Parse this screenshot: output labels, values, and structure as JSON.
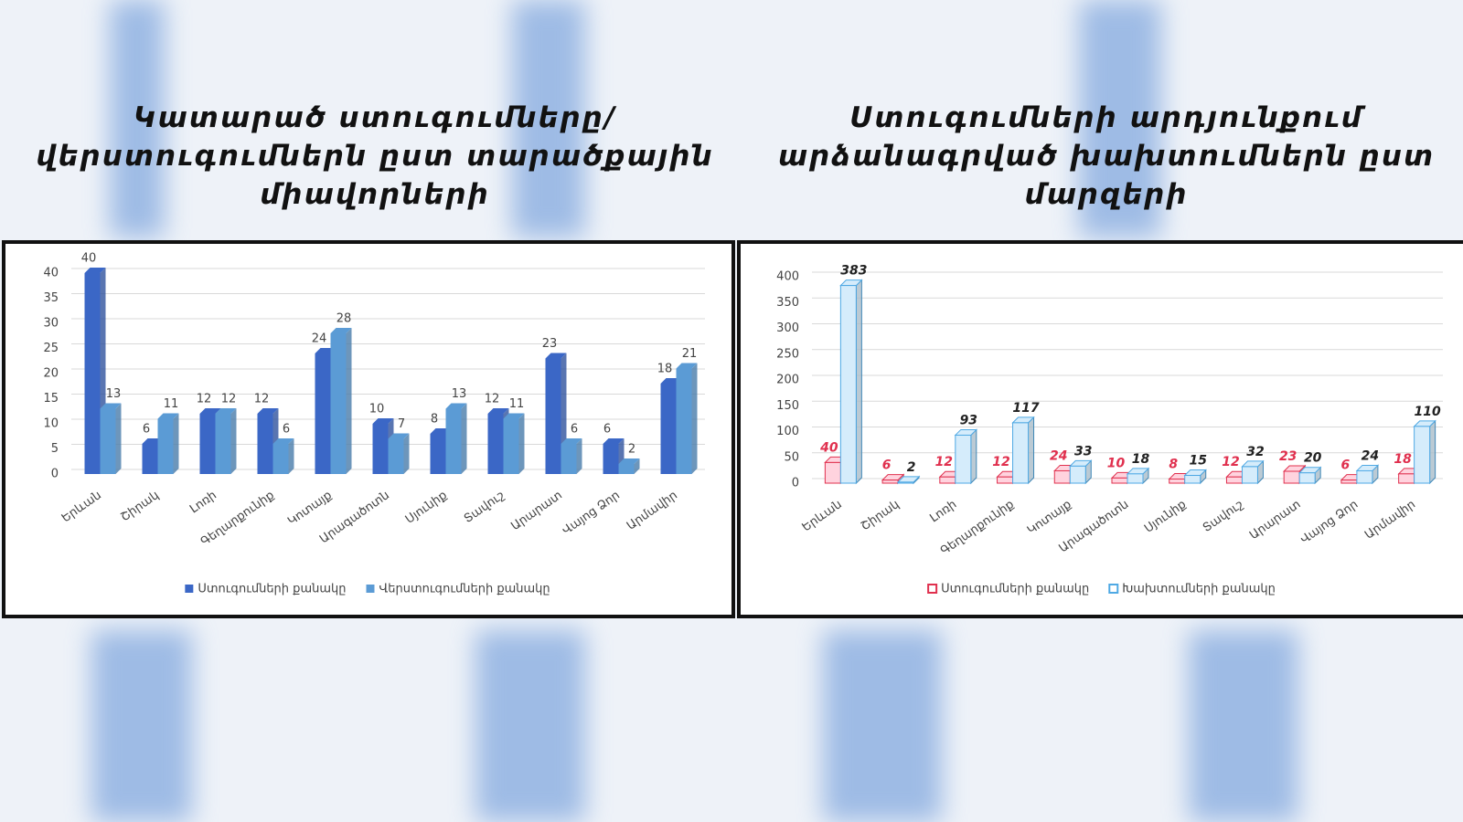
{
  "chart_data": [
    {
      "type": "bar",
      "title": "Կատարած ստուգումները/վերստուգումներն ըստ տարածքային միավորների",
      "categories": [
        "Երևան",
        "Շիրակ",
        "Լոռի",
        "Գեղարքունիք",
        "Կոտայք",
        "Արագածոտն",
        "Սյունիք",
        "Տավուշ",
        "Արարատ",
        "Վայոց Ձոր",
        "Արմավիր"
      ],
      "series": [
        {
          "name": "Ստուգումների քանակը",
          "color": "#3b67c6",
          "values": [
            40,
            6,
            12,
            12,
            24,
            10,
            8,
            12,
            23,
            6,
            18
          ]
        },
        {
          "name": "Վերստուգումների քանակը",
          "color": "#5b9bd5",
          "values": [
            13,
            11,
            12,
            6,
            28,
            7,
            13,
            11,
            6,
            2,
            21
          ]
        }
      ],
      "ylim": [
        0,
        40
      ],
      "yticks": [
        0,
        5,
        10,
        15,
        20,
        25,
        30,
        35,
        40
      ],
      "grid": true
    },
    {
      "type": "bar",
      "title": "Ստուգումների արդյունքում արձանագրված խախտումներն ըստ մարզերի",
      "categories": [
        "Երևան",
        "Շիրակ",
        "Լոռի",
        "Գեղարքունիք",
        "Կոտայք",
        "Արագածոտն",
        "Սյունիք",
        "Տավուշ",
        "Արարատ",
        "Վայոց Ձոր",
        "Արմավիր"
      ],
      "series": [
        {
          "name": "Ստուգումների քանակը",
          "color": "#ffd3de",
          "border_color": "#e0304e",
          "values": [
            40,
            6,
            12,
            12,
            24,
            10,
            8,
            12,
            23,
            6,
            18
          ]
        },
        {
          "name": "Խախտումների քանակը",
          "color": "#d5ecfb",
          "border_color": "#4fa9e4",
          "values": [
            383,
            2,
            93,
            117,
            33,
            18,
            15,
            32,
            20,
            24,
            110
          ]
        }
      ],
      "ylim": [
        0,
        400
      ],
      "yticks": [
        0,
        50,
        100,
        150,
        200,
        250,
        300,
        350,
        400
      ],
      "grid": true
    }
  ]
}
